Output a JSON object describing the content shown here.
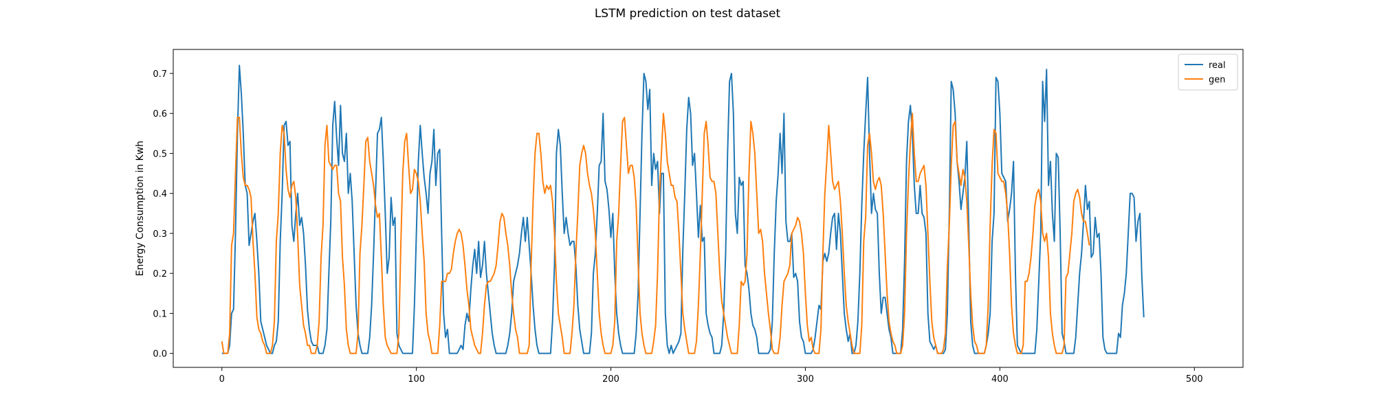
{
  "chart_data": {
    "type": "line",
    "title": "LSTM prediction on test dataset",
    "xlabel": "",
    "ylabel": "Energy Consumption in Kwh",
    "xlim": [
      -25,
      525
    ],
    "ylim": [
      -0.035,
      0.76
    ],
    "x_ticks": [
      0,
      100,
      200,
      300,
      400,
      500
    ],
    "y_ticks": [
      0.0,
      0.1,
      0.2,
      0.3,
      0.4,
      0.5,
      0.6,
      0.7
    ],
    "grid": false,
    "legend_position": "top-right",
    "colors": {
      "real": "#1f77b4",
      "gen": "#ff7f0e"
    },
    "x_start": 0,
    "series": [
      {
        "name": "real",
        "values": [
          0.0,
          0.0,
          0.0,
          0.0,
          0.02,
          0.1,
          0.11,
          0.3,
          0.55,
          0.72,
          0.65,
          0.55,
          0.42,
          0.4,
          0.27,
          0.3,
          0.33,
          0.35,
          0.28,
          0.2,
          0.08,
          0.06,
          0.04,
          0.02,
          0.01,
          0.0,
          0.0,
          0.02,
          0.03,
          0.08,
          0.28,
          0.4,
          0.57,
          0.58,
          0.52,
          0.53,
          0.32,
          0.28,
          0.35,
          0.4,
          0.32,
          0.34,
          0.3,
          0.22,
          0.11,
          0.06,
          0.03,
          0.02,
          0.02,
          0.02,
          0.0,
          0.0,
          0.0,
          0.02,
          0.06,
          0.2,
          0.33,
          0.57,
          0.63,
          0.54,
          0.47,
          0.62,
          0.5,
          0.48,
          0.55,
          0.4,
          0.45,
          0.38,
          0.25,
          0.12,
          0.05,
          0.02,
          0.0,
          0.0,
          0.0,
          0.0,
          0.04,
          0.12,
          0.25,
          0.4,
          0.55,
          0.56,
          0.59,
          0.48,
          0.35,
          0.2,
          0.24,
          0.39,
          0.32,
          0.34,
          0.05,
          0.02,
          0.01,
          0.0,
          0.0,
          0.0,
          0.0,
          0.0,
          0.0,
          0.12,
          0.3,
          0.48,
          0.57,
          0.5,
          0.44,
          0.4,
          0.35,
          0.45,
          0.48,
          0.56,
          0.42,
          0.5,
          0.51,
          0.3,
          0.1,
          0.04,
          0.06,
          0.0,
          0.0,
          0.0,
          0.0,
          0.0,
          0.01,
          0.02,
          0.01,
          0.07,
          0.1,
          0.08,
          0.16,
          0.22,
          0.26,
          0.2,
          0.28,
          0.19,
          0.22,
          0.28,
          0.2,
          0.15,
          0.1,
          0.05,
          0.02,
          0.0,
          0.0,
          0.0,
          0.0,
          0.0,
          0.0,
          0.02,
          0.05,
          0.1,
          0.18,
          0.2,
          0.22,
          0.25,
          0.3,
          0.34,
          0.28,
          0.34,
          0.27,
          0.2,
          0.12,
          0.06,
          0.02,
          0.0,
          0.0,
          0.0,
          0.0,
          0.0,
          0.0,
          0.0,
          0.08,
          0.22,
          0.5,
          0.56,
          0.52,
          0.4,
          0.3,
          0.34,
          0.3,
          0.27,
          0.28,
          0.28,
          0.22,
          0.12,
          0.06,
          0.03,
          0.0,
          0.0,
          0.0,
          0.0,
          0.05,
          0.2,
          0.25,
          0.35,
          0.47,
          0.48,
          0.6,
          0.43,
          0.41,
          0.36,
          0.29,
          0.35,
          0.2,
          0.1,
          0.05,
          0.02,
          0.0,
          0.0,
          0.0,
          0.0,
          0.0,
          0.0,
          0.0,
          0.05,
          0.15,
          0.35,
          0.55,
          0.7,
          0.68,
          0.61,
          0.66,
          0.42,
          0.5,
          0.46,
          0.48,
          0.35,
          0.45,
          0.45,
          0.1,
          0.02,
          0.0,
          0.02,
          0.0,
          0.01,
          0.02,
          0.03,
          0.05,
          0.26,
          0.4,
          0.56,
          0.64,
          0.6,
          0.47,
          0.5,
          0.4,
          0.29,
          0.37,
          0.28,
          0.29,
          0.1,
          0.07,
          0.05,
          0.04,
          0.0,
          0.0,
          0.0,
          0.0,
          0.02,
          0.1,
          0.25,
          0.5,
          0.68,
          0.7,
          0.6,
          0.35,
          0.3,
          0.44,
          0.42,
          0.43,
          0.22,
          0.2,
          0.16,
          0.1,
          0.07,
          0.06,
          0.04,
          0.0,
          0.0,
          0.0,
          0.0,
          0.0,
          0.0,
          0.01,
          0.08,
          0.25,
          0.38,
          0.45,
          0.55,
          0.45,
          0.6,
          0.33,
          0.28,
          0.28,
          0.3,
          0.19,
          0.2,
          0.18,
          0.08,
          0.04,
          0.03,
          0.0,
          0.0,
          0.0,
          0.0,
          0.01,
          0.04,
          0.08,
          0.12,
          0.11,
          0.23,
          0.25,
          0.23,
          0.25,
          0.3,
          0.34,
          0.35,
          0.26,
          0.35,
          0.3,
          0.2,
          0.1,
          0.06,
          0.03,
          0.05,
          0.0,
          0.0,
          0.02,
          0.08,
          0.2,
          0.37,
          0.5,
          0.6,
          0.69,
          0.5,
          0.35,
          0.4,
          0.36,
          0.35,
          0.2,
          0.1,
          0.14,
          0.14,
          0.1,
          0.06,
          0.04,
          0.0,
          0.0,
          0.0,
          0.0,
          0.0,
          0.06,
          0.23,
          0.48,
          0.58,
          0.62,
          0.55,
          0.42,
          0.35,
          0.35,
          0.42,
          0.35,
          0.34,
          0.3,
          0.1,
          0.03,
          0.02,
          0.01,
          0.02,
          0.0,
          0.0,
          0.0,
          0.0,
          0.01,
          0.1,
          0.35,
          0.68,
          0.66,
          0.6,
          0.48,
          0.43,
          0.36,
          0.4,
          0.44,
          0.53,
          0.32,
          0.08,
          0.02,
          0.0,
          0.0,
          0.0,
          0.0,
          0.0,
          0.0,
          0.02,
          0.05,
          0.1,
          0.28,
          0.35,
          0.69,
          0.68,
          0.6,
          0.45,
          0.44,
          0.43,
          0.33,
          0.36,
          0.4,
          0.48,
          0.2,
          0.02,
          0.01,
          0.0,
          0.0,
          0.0,
          0.0,
          0.0,
          0.0,
          0.0,
          0.0,
          0.06,
          0.18,
          0.3,
          0.68,
          0.58,
          0.71,
          0.42,
          0.48,
          0.35,
          0.28,
          0.5,
          0.49,
          0.3,
          0.05,
          0.03,
          0.0,
          0.0,
          0.0,
          0.0,
          0.0,
          0.04,
          0.12,
          0.2,
          0.25,
          0.33,
          0.42,
          0.36,
          0.38,
          0.24,
          0.25,
          0.34,
          0.29,
          0.3,
          0.2,
          0.04,
          0.01,
          0.0,
          0.0,
          0.0,
          0.0,
          0.0,
          0.0,
          0.05,
          0.04,
          0.12,
          0.15,
          0.2,
          0.3,
          0.4,
          0.4,
          0.39,
          0.28,
          0.33,
          0.35,
          0.19,
          0.09
        ]
      },
      {
        "name": "gen",
        "values": [
          0.03,
          0.0,
          0.0,
          0.0,
          0.05,
          0.27,
          0.3,
          0.45,
          0.59,
          0.59,
          0.5,
          0.44,
          0.42,
          0.42,
          0.41,
          0.39,
          0.28,
          0.2,
          0.09,
          0.06,
          0.05,
          0.03,
          0.02,
          0.0,
          0.0,
          0.0,
          0.02,
          0.08,
          0.28,
          0.35,
          0.5,
          0.57,
          0.55,
          0.46,
          0.41,
          0.39,
          0.42,
          0.43,
          0.39,
          0.29,
          0.17,
          0.12,
          0.07,
          0.05,
          0.02,
          0.02,
          0.0,
          0.0,
          0.0,
          0.02,
          0.08,
          0.24,
          0.32,
          0.52,
          0.57,
          0.48,
          0.47,
          0.46,
          0.47,
          0.47,
          0.4,
          0.38,
          0.24,
          0.17,
          0.06,
          0.02,
          0.0,
          0.0,
          0.0,
          0.0,
          0.05,
          0.25,
          0.32,
          0.42,
          0.53,
          0.54,
          0.48,
          0.45,
          0.42,
          0.37,
          0.34,
          0.35,
          0.24,
          0.12,
          0.04,
          0.02,
          0.01,
          0.0,
          0.0,
          0.0,
          0.0,
          0.05,
          0.27,
          0.45,
          0.53,
          0.55,
          0.47,
          0.4,
          0.41,
          0.46,
          0.45,
          0.43,
          0.38,
          0.3,
          0.23,
          0.1,
          0.05,
          0.03,
          0.0,
          0.0,
          0.0,
          0.0,
          0.07,
          0.18,
          0.18,
          0.18,
          0.2,
          0.2,
          0.21,
          0.25,
          0.28,
          0.3,
          0.31,
          0.3,
          0.27,
          0.22,
          0.16,
          0.12,
          0.06,
          0.04,
          0.02,
          0.01,
          0.0,
          0.0,
          0.05,
          0.12,
          0.17,
          0.18,
          0.18,
          0.19,
          0.2,
          0.22,
          0.27,
          0.33,
          0.35,
          0.34,
          0.3,
          0.27,
          0.22,
          0.15,
          0.1,
          0.06,
          0.04,
          0.0,
          0.0,
          0.0,
          0.0,
          0.0,
          0.02,
          0.22,
          0.38,
          0.5,
          0.55,
          0.55,
          0.5,
          0.43,
          0.4,
          0.42,
          0.41,
          0.42,
          0.38,
          0.3,
          0.18,
          0.1,
          0.07,
          0.04,
          0.0,
          0.0,
          0.0,
          0.0,
          0.05,
          0.12,
          0.25,
          0.35,
          0.47,
          0.5,
          0.52,
          0.5,
          0.45,
          0.42,
          0.4,
          0.36,
          0.3,
          0.2,
          0.1,
          0.05,
          0.02,
          0.0,
          0.0,
          0.0,
          0.0,
          0.02,
          0.08,
          0.28,
          0.35,
          0.47,
          0.58,
          0.59,
          0.52,
          0.45,
          0.47,
          0.47,
          0.44,
          0.37,
          0.23,
          0.1,
          0.05,
          0.02,
          0.0,
          0.0,
          0.0,
          0.0,
          0.03,
          0.07,
          0.2,
          0.4,
          0.5,
          0.6,
          0.55,
          0.48,
          0.45,
          0.42,
          0.42,
          0.39,
          0.38,
          0.3,
          0.2,
          0.1,
          0.06,
          0.03,
          0.0,
          0.0,
          0.0,
          0.0,
          0.03,
          0.12,
          0.25,
          0.4,
          0.55,
          0.58,
          0.52,
          0.44,
          0.43,
          0.43,
          0.4,
          0.3,
          0.2,
          0.13,
          0.1,
          0.07,
          0.04,
          0.02,
          0.0,
          0.0,
          0.0,
          0.0,
          0.07,
          0.18,
          0.17,
          0.18,
          0.25,
          0.45,
          0.58,
          0.55,
          0.5,
          0.4,
          0.3,
          0.31,
          0.28,
          0.2,
          0.15,
          0.1,
          0.06,
          0.01,
          0.0,
          0.0,
          0.0,
          0.04,
          0.12,
          0.18,
          0.19,
          0.2,
          0.22,
          0.3,
          0.31,
          0.32,
          0.34,
          0.33,
          0.3,
          0.25,
          0.15,
          0.07,
          0.03,
          0.04,
          0.01,
          0.0,
          0.0,
          0.0,
          0.06,
          0.25,
          0.4,
          0.48,
          0.57,
          0.5,
          0.43,
          0.41,
          0.42,
          0.43,
          0.38,
          0.3,
          0.2,
          0.12,
          0.08,
          0.05,
          0.02,
          0.0,
          0.0,
          0.0,
          0.0,
          0.07,
          0.28,
          0.34,
          0.52,
          0.55,
          0.5,
          0.43,
          0.41,
          0.43,
          0.44,
          0.42,
          0.35,
          0.25,
          0.15,
          0.08,
          0.05,
          0.03,
          0.02,
          0.0,
          0.0,
          0.0,
          0.02,
          0.1,
          0.3,
          0.43,
          0.53,
          0.6,
          0.5,
          0.43,
          0.43,
          0.45,
          0.46,
          0.47,
          0.42,
          0.3,
          0.18,
          0.08,
          0.04,
          0.02,
          0.0,
          0.0,
          0.0,
          0.01,
          0.05,
          0.22,
          0.32,
          0.47,
          0.57,
          0.58,
          0.48,
          0.45,
          0.42,
          0.46,
          0.44,
          0.38,
          0.27,
          0.15,
          0.07,
          0.03,
          0.02,
          0.0,
          0.0,
          0.0,
          0.0,
          0.02,
          0.12,
          0.32,
          0.47,
          0.56,
          0.55,
          0.45,
          0.44,
          0.43,
          0.43,
          0.4,
          0.35,
          0.25,
          0.12,
          0.05,
          0.02,
          0.0,
          0.0,
          0.0,
          0.02,
          0.18,
          0.18,
          0.2,
          0.24,
          0.3,
          0.37,
          0.4,
          0.41,
          0.38,
          0.3,
          0.28,
          0.3,
          0.24,
          0.1,
          0.05,
          0.02,
          0.0,
          0.0,
          0.0,
          0.0,
          0.02,
          0.19,
          0.2,
          0.25,
          0.3,
          0.38,
          0.4,
          0.41,
          0.39,
          0.35,
          0.33,
          0.33,
          0.3,
          0.27
        ]
      }
    ]
  }
}
